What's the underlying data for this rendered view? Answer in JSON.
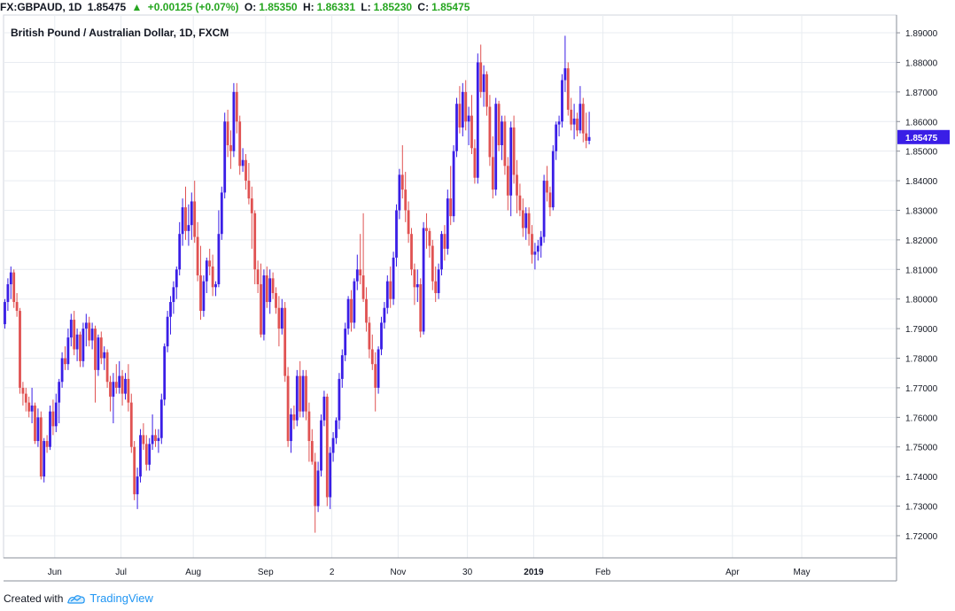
{
  "header": {
    "symbol": "FX:GBPAUD, 1D",
    "last": "1.85475",
    "change_icon": "triangle-up-icon",
    "change": "+0.00125 (+0.07%)",
    "open_label": "O:",
    "open": "1.85350",
    "high_label": "H:",
    "high": "1.86331",
    "low_label": "L:",
    "low": "1.85230",
    "close_label": "C:",
    "close": "1.85475"
  },
  "footer": {
    "created_with": "Created with",
    "brand": "TradingView",
    "logo_icon": "tradingview-logo-icon"
  },
  "colors": {
    "up": "#3a1ee6",
    "down": "#e05252",
    "grid": "#e8ecf1",
    "price_tag": "#3a1ee6",
    "header_up": "#26a620"
  },
  "chart_data": {
    "type": "candlestick",
    "title": "British Pound / Australian Dollar, 1D, FXCM",
    "ylim": [
      1.7125,
      1.896
    ],
    "y_ticks": [
      "1.72000",
      "1.73000",
      "1.74000",
      "1.75000",
      "1.76000",
      "1.77000",
      "1.78000",
      "1.79000",
      "1.80000",
      "1.81000",
      "1.82000",
      "1.83000",
      "1.84000",
      "1.85000",
      "1.86000",
      "1.87000",
      "1.88000",
      "1.89000"
    ],
    "x_labels": [
      {
        "label": "Jun",
        "index": 17
      },
      {
        "label": "Jul",
        "index": 39
      },
      {
        "label": "Aug",
        "index": 63
      },
      {
        "label": "Sep",
        "index": 87
      },
      {
        "label": "2",
        "index": 109
      },
      {
        "label": "Nov",
        "index": 131
      },
      {
        "label": "30",
        "index": 154
      },
      {
        "label": "2019",
        "index": 176
      },
      {
        "label": "Feb",
        "index": 199
      },
      {
        "label": "Apr",
        "index": 242
      },
      {
        "label": "May",
        "index": 265
      }
    ],
    "last_price": "1.85475",
    "last_value": 1.85475,
    "candles": [
      [
        1.7915,
        1.8,
        1.79,
        1.799
      ],
      [
        1.799,
        1.807,
        1.796,
        1.805
      ],
      [
        1.805,
        1.811,
        1.8,
        1.809
      ],
      [
        1.809,
        1.81,
        1.797,
        1.799
      ],
      [
        1.799,
        1.802,
        1.794,
        1.796
      ],
      [
        1.796,
        1.797,
        1.768,
        1.77
      ],
      [
        1.77,
        1.772,
        1.764,
        1.768
      ],
      [
        1.768,
        1.77,
        1.762,
        1.765
      ],
      [
        1.765,
        1.767,
        1.76,
        1.762
      ],
      [
        1.762,
        1.77,
        1.758,
        1.764
      ],
      [
        1.764,
        1.765,
        1.751,
        1.752
      ],
      [
        1.752,
        1.763,
        1.75,
        1.76
      ],
      [
        1.76,
        1.762,
        1.739,
        1.74
      ],
      [
        1.74,
        1.753,
        1.738,
        1.752
      ],
      [
        1.752,
        1.754,
        1.748,
        1.75
      ],
      [
        1.75,
        1.764,
        1.749,
        1.762
      ],
      [
        1.762,
        1.766,
        1.754,
        1.757
      ],
      [
        1.757,
        1.768,
        1.755,
        1.765
      ],
      [
        1.765,
        1.773,
        1.758,
        1.772
      ],
      [
        1.772,
        1.782,
        1.77,
        1.78
      ],
      [
        1.78,
        1.784,
        1.776,
        1.778
      ],
      [
        1.778,
        1.79,
        1.776,
        1.787
      ],
      [
        1.787,
        1.795,
        1.784,
        1.793
      ],
      [
        1.793,
        1.796,
        1.781,
        1.783
      ],
      [
        1.783,
        1.79,
        1.779,
        1.788
      ],
      [
        1.788,
        1.789,
        1.777,
        1.779
      ],
      [
        1.779,
        1.792,
        1.777,
        1.79
      ],
      [
        1.79,
        1.795,
        1.784,
        1.792
      ],
      [
        1.792,
        1.794,
        1.784,
        1.786
      ],
      [
        1.786,
        1.792,
        1.783,
        1.79
      ],
      [
        1.79,
        1.791,
        1.765,
        1.776
      ],
      [
        1.776,
        1.788,
        1.774,
        1.787
      ],
      [
        1.787,
        1.789,
        1.778,
        1.78
      ],
      [
        1.78,
        1.784,
        1.776,
        1.782
      ],
      [
        1.782,
        1.783,
        1.77,
        1.772
      ],
      [
        1.772,
        1.774,
        1.762,
        1.767
      ],
      [
        1.767,
        1.775,
        1.758,
        1.772
      ],
      [
        1.772,
        1.778,
        1.768,
        1.77
      ],
      [
        1.77,
        1.779,
        1.768,
        1.774
      ],
      [
        1.774,
        1.776,
        1.764,
        1.768
      ],
      [
        1.768,
        1.775,
        1.766,
        1.773
      ],
      [
        1.773,
        1.778,
        1.762,
        1.765
      ],
      [
        1.765,
        1.768,
        1.748,
        1.75
      ],
      [
        1.75,
        1.752,
        1.732,
        1.734
      ],
      [
        1.734,
        1.743,
        1.729,
        1.74
      ],
      [
        1.74,
        1.756,
        1.738,
        1.754
      ],
      [
        1.754,
        1.758,
        1.749,
        1.751
      ],
      [
        1.751,
        1.754,
        1.742,
        1.744
      ],
      [
        1.744,
        1.753,
        1.742,
        1.751
      ],
      [
        1.751,
        1.761,
        1.749,
        1.754
      ],
      [
        1.754,
        1.756,
        1.75,
        1.752
      ],
      [
        1.752,
        1.756,
        1.748,
        1.753
      ],
      [
        1.753,
        1.768,
        1.751,
        1.766
      ],
      [
        1.766,
        1.785,
        1.764,
        1.784
      ],
      [
        1.784,
        1.796,
        1.782,
        1.794
      ],
      [
        1.794,
        1.801,
        1.788,
        1.799
      ],
      [
        1.799,
        1.806,
        1.795,
        1.804
      ],
      [
        1.804,
        1.811,
        1.8,
        1.81
      ],
      [
        1.81,
        1.826,
        1.808,
        1.822
      ],
      [
        1.822,
        1.834,
        1.818,
        1.831
      ],
      [
        1.831,
        1.838,
        1.82,
        1.823
      ],
      [
        1.823,
        1.832,
        1.818,
        1.825
      ],
      [
        1.825,
        1.836,
        1.82,
        1.833
      ],
      [
        1.833,
        1.84,
        1.819,
        1.821
      ],
      [
        1.821,
        1.826,
        1.806,
        1.808
      ],
      [
        1.808,
        1.818,
        1.793,
        1.796
      ],
      [
        1.796,
        1.808,
        1.794,
        1.806
      ],
      [
        1.806,
        1.814,
        1.802,
        1.813
      ],
      [
        1.813,
        1.817,
        1.808,
        1.811
      ],
      [
        1.811,
        1.815,
        1.801,
        1.804
      ],
      [
        1.804,
        1.806,
        1.801,
        1.805
      ],
      [
        1.805,
        1.83,
        1.804,
        1.822
      ],
      [
        1.822,
        1.838,
        1.82,
        1.836
      ],
      [
        1.836,
        1.863,
        1.834,
        1.86
      ],
      [
        1.86,
        1.864,
        1.848,
        1.852
      ],
      [
        1.852,
        1.857,
        1.844,
        1.85
      ],
      [
        1.85,
        1.873,
        1.848,
        1.87
      ],
      [
        1.87,
        1.873,
        1.856,
        1.86
      ],
      [
        1.86,
        1.862,
        1.842,
        1.845
      ],
      [
        1.845,
        1.851,
        1.843,
        1.847
      ],
      [
        1.847,
        1.849,
        1.837,
        1.84
      ],
      [
        1.84,
        1.846,
        1.832,
        1.834
      ],
      [
        1.834,
        1.838,
        1.817,
        1.829
      ],
      [
        1.829,
        1.83,
        1.805,
        1.81
      ],
      [
        1.81,
        1.813,
        1.802,
        1.805
      ],
      [
        1.805,
        1.812,
        1.787,
        1.788
      ],
      [
        1.788,
        1.81,
        1.786,
        1.808
      ],
      [
        1.808,
        1.811,
        1.797,
        1.799
      ],
      [
        1.799,
        1.81,
        1.795,
        1.807
      ],
      [
        1.807,
        1.809,
        1.8,
        1.802
      ],
      [
        1.802,
        1.804,
        1.795,
        1.797
      ],
      [
        1.797,
        1.801,
        1.784,
        1.79
      ],
      [
        1.79,
        1.8,
        1.788,
        1.797
      ],
      [
        1.797,
        1.799,
        1.772,
        1.774
      ],
      [
        1.774,
        1.777,
        1.75,
        1.752
      ],
      [
        1.752,
        1.763,
        1.748,
        1.761
      ],
      [
        1.761,
        1.764,
        1.756,
        1.759
      ],
      [
        1.759,
        1.776,
        1.757,
        1.774
      ],
      [
        1.774,
        1.779,
        1.76,
        1.762
      ],
      [
        1.762,
        1.776,
        1.76,
        1.774
      ],
      [
        1.774,
        1.776,
        1.759,
        1.762
      ],
      [
        1.762,
        1.765,
        1.745,
        1.752
      ],
      [
        1.752,
        1.756,
        1.744,
        1.745
      ],
      [
        1.745,
        1.748,
        1.721,
        1.73
      ],
      [
        1.73,
        1.745,
        1.728,
        1.742
      ],
      [
        1.742,
        1.761,
        1.74,
        1.759
      ],
      [
        1.759,
        1.769,
        1.757,
        1.767
      ],
      [
        1.767,
        1.768,
        1.73,
        1.733
      ],
      [
        1.733,
        1.75,
        1.729,
        1.748
      ],
      [
        1.748,
        1.755,
        1.745,
        1.753
      ],
      [
        1.753,
        1.76,
        1.751,
        1.759
      ],
      [
        1.759,
        1.775,
        1.756,
        1.773
      ],
      [
        1.773,
        1.783,
        1.77,
        1.781
      ],
      [
        1.781,
        1.792,
        1.779,
        1.79
      ],
      [
        1.79,
        1.801,
        1.788,
        1.8
      ],
      [
        1.8,
        1.803,
        1.789,
        1.792
      ],
      [
        1.792,
        1.807,
        1.79,
        1.806
      ],
      [
        1.806,
        1.815,
        1.803,
        1.81
      ],
      [
        1.81,
        1.822,
        1.805,
        1.808
      ],
      [
        1.808,
        1.829,
        1.799,
        1.8
      ],
      [
        1.8,
        1.804,
        1.789,
        1.792
      ],
      [
        1.792,
        1.794,
        1.78,
        1.783
      ],
      [
        1.783,
        1.788,
        1.776,
        1.778
      ],
      [
        1.778,
        1.782,
        1.762,
        1.77
      ],
      [
        1.77,
        1.784,
        1.768,
        1.783
      ],
      [
        1.783,
        1.794,
        1.781,
        1.792
      ],
      [
        1.792,
        1.799,
        1.79,
        1.797
      ],
      [
        1.797,
        1.808,
        1.795,
        1.806
      ],
      [
        1.806,
        1.811,
        1.797,
        1.8
      ],
      [
        1.8,
        1.816,
        1.798,
        1.814
      ],
      [
        1.814,
        1.832,
        1.811,
        1.83
      ],
      [
        1.83,
        1.844,
        1.827,
        1.842
      ],
      [
        1.842,
        1.852,
        1.834,
        1.837
      ],
      [
        1.837,
        1.843,
        1.826,
        1.83
      ],
      [
        1.83,
        1.833,
        1.819,
        1.822
      ],
      [
        1.822,
        1.824,
        1.808,
        1.81
      ],
      [
        1.81,
        1.812,
        1.798,
        1.804
      ],
      [
        1.804,
        1.81,
        1.799,
        1.805
      ],
      [
        1.805,
        1.807,
        1.787,
        1.789
      ],
      [
        1.789,
        1.826,
        1.788,
        1.824
      ],
      [
        1.824,
        1.829,
        1.817,
        1.823
      ],
      [
        1.823,
        1.824,
        1.814,
        1.818
      ],
      [
        1.818,
        1.82,
        1.803,
        1.806
      ],
      [
        1.806,
        1.811,
        1.799,
        1.802
      ],
      [
        1.802,
        1.812,
        1.8,
        1.81
      ],
      [
        1.81,
        1.823,
        1.808,
        1.822
      ],
      [
        1.822,
        1.825,
        1.813,
        1.817
      ],
      [
        1.817,
        1.837,
        1.815,
        1.834
      ],
      [
        1.834,
        1.845,
        1.825,
        1.828
      ],
      [
        1.828,
        1.852,
        1.826,
        1.85
      ],
      [
        1.85,
        1.868,
        1.848,
        1.866
      ],
      [
        1.866,
        1.872,
        1.856,
        1.858
      ],
      [
        1.858,
        1.873,
        1.855,
        1.87
      ],
      [
        1.87,
        1.874,
        1.857,
        1.86
      ],
      [
        1.86,
        1.865,
        1.852,
        1.862
      ],
      [
        1.862,
        1.869,
        1.849,
        1.851
      ],
      [
        1.851,
        1.854,
        1.839,
        1.841
      ],
      [
        1.841,
        1.883,
        1.839,
        1.88
      ],
      [
        1.88,
        1.886,
        1.868,
        1.87
      ],
      [
        1.87,
        1.879,
        1.865,
        1.876
      ],
      [
        1.876,
        1.877,
        1.862,
        1.865
      ],
      [
        1.865,
        1.869,
        1.845,
        1.848
      ],
      [
        1.848,
        1.855,
        1.834,
        1.837
      ],
      [
        1.837,
        1.868,
        1.835,
        1.866
      ],
      [
        1.866,
        1.867,
        1.85,
        1.852
      ],
      [
        1.852,
        1.862,
        1.847,
        1.86
      ],
      [
        1.86,
        1.862,
        1.842,
        1.845
      ],
      [
        1.845,
        1.848,
        1.83,
        1.835
      ],
      [
        1.835,
        1.86,
        1.828,
        1.858
      ],
      [
        1.858,
        1.862,
        1.839,
        1.842
      ],
      [
        1.842,
        1.847,
        1.829,
        1.835
      ],
      [
        1.835,
        1.839,
        1.828,
        1.83
      ],
      [
        1.83,
        1.834,
        1.821,
        1.824
      ],
      [
        1.824,
        1.831,
        1.82,
        1.829
      ],
      [
        1.829,
        1.831,
        1.818,
        1.822
      ],
      [
        1.822,
        1.825,
        1.812,
        1.815
      ],
      [
        1.815,
        1.819,
        1.81,
        1.816
      ],
      [
        1.816,
        1.82,
        1.813,
        1.818
      ],
      [
        1.818,
        1.823,
        1.814,
        1.821
      ],
      [
        1.821,
        1.842,
        1.819,
        1.84
      ],
      [
        1.84,
        1.845,
        1.833,
        1.836
      ],
      [
        1.836,
        1.838,
        1.828,
        1.831
      ],
      [
        1.831,
        1.852,
        1.83,
        1.85
      ],
      [
        1.85,
        1.86,
        1.847,
        1.859
      ],
      [
        1.859,
        1.862,
        1.855,
        1.86
      ],
      [
        1.86,
        1.876,
        1.858,
        1.874
      ],
      [
        1.874,
        1.889,
        1.87,
        1.878
      ],
      [
        1.878,
        1.88,
        1.862,
        1.864
      ],
      [
        1.864,
        1.868,
        1.857,
        1.859
      ],
      [
        1.859,
        1.866,
        1.854,
        1.861
      ],
      [
        1.861,
        1.863,
        1.855,
        1.857
      ],
      [
        1.857,
        1.872,
        1.856,
        1.866
      ],
      [
        1.866,
        1.868,
        1.853,
        1.856
      ],
      [
        1.856,
        1.863,
        1.851,
        1.8535
      ],
      [
        1.8535,
        1.8633,
        1.8523,
        1.85475
      ]
    ]
  }
}
